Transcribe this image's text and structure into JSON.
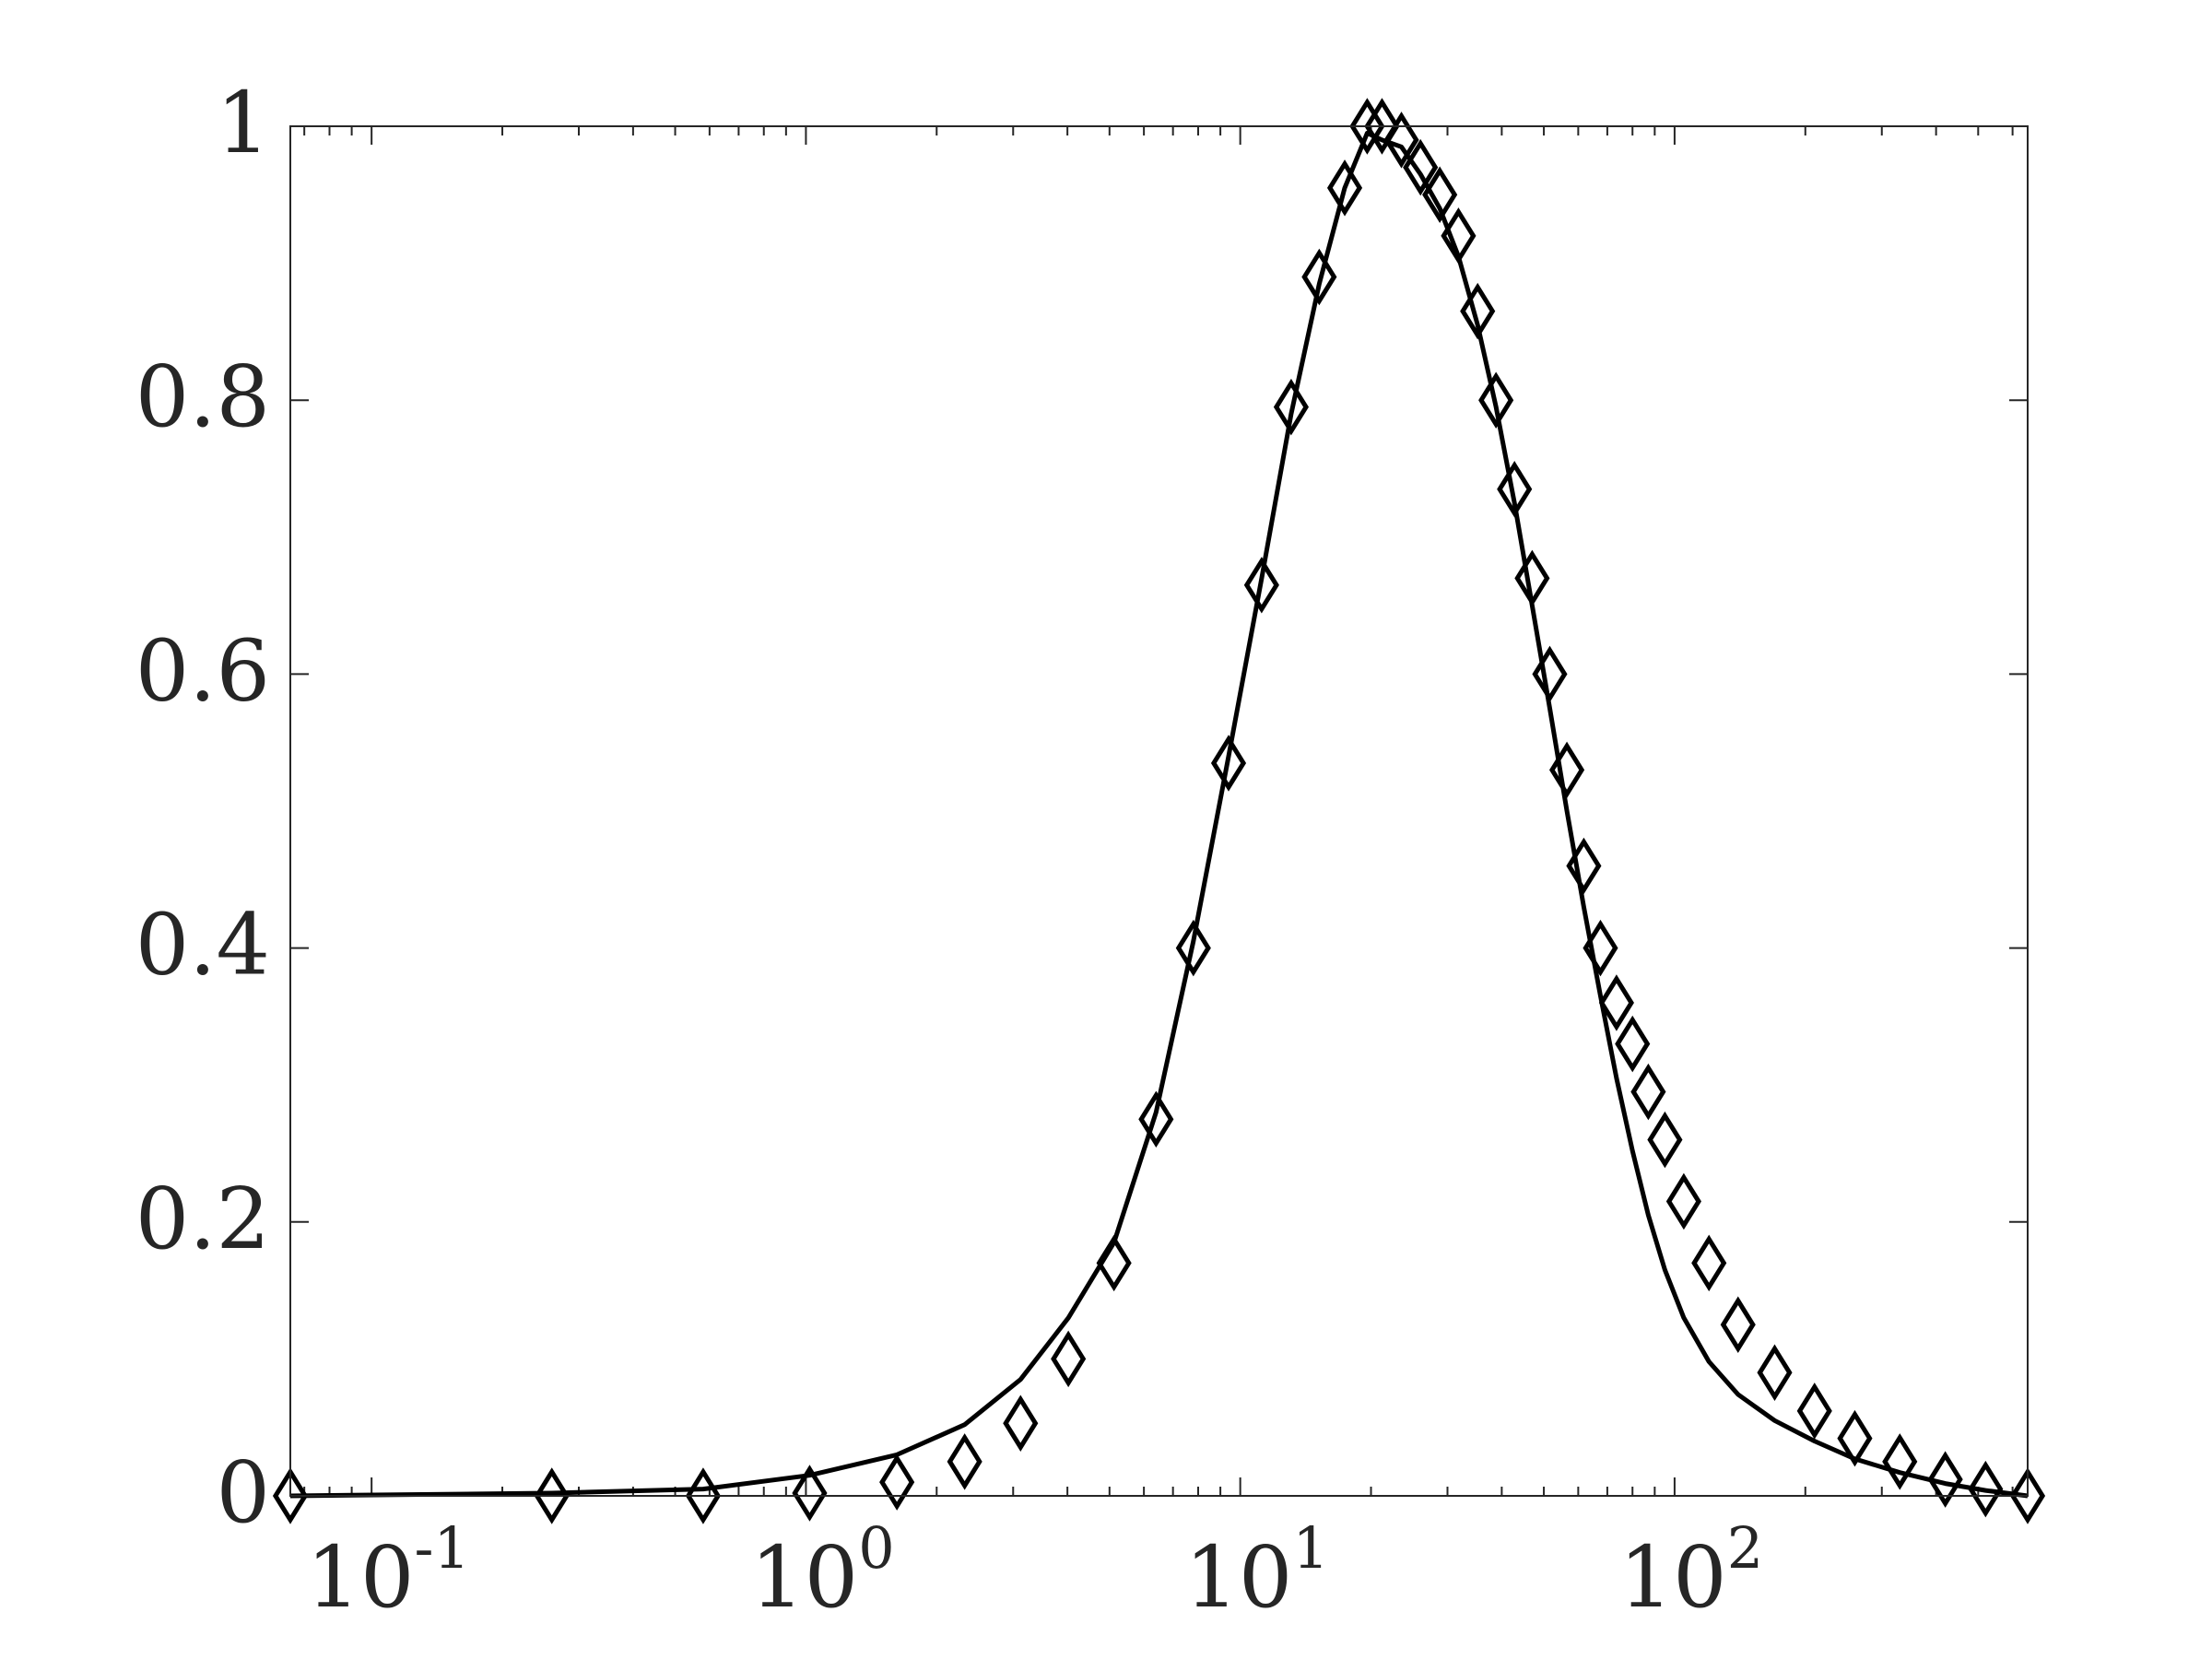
{
  "chart_data": {
    "type": "line",
    "title": "",
    "xlabel": "",
    "ylabel": "",
    "x_scale": "log",
    "xlim": [
      0.065,
      650
    ],
    "ylim": [
      0,
      1
    ],
    "grid": false,
    "x_ticks": [
      {
        "value": 0.1,
        "base": "10",
        "exp": "-1"
      },
      {
        "value": 1,
        "base": "10",
        "exp": "0"
      },
      {
        "value": 10,
        "base": "10",
        "exp": "1"
      },
      {
        "value": 100,
        "base": "10",
        "exp": "2"
      }
    ],
    "y_ticks": [
      {
        "value": 0,
        "label": "0"
      },
      {
        "value": 0.2,
        "label": "0.2"
      },
      {
        "value": 0.4,
        "label": "0.4"
      },
      {
        "value": 0.6,
        "label": "0.6"
      },
      {
        "value": 0.8,
        "label": "0.8"
      },
      {
        "value": 1,
        "label": "1"
      }
    ],
    "series": [
      {
        "style": "line",
        "color": "#000000",
        "x": [
          0.065,
          0.26,
          0.58,
          1.02,
          1.62,
          2.32,
          3.12,
          4.02,
          5.12,
          6.4,
          7.8,
          9.4,
          11.2,
          13.1,
          15.2,
          17.4,
          19.6,
          21.2,
          23.5,
          26.0,
          28.8,
          31.8,
          35.2,
          38.8,
          42.8,
          47.0,
          51.6,
          56.5,
          61.8,
          67.5,
          73.5,
          80.0,
          87.0,
          95.0,
          105,
          120,
          140,
          170,
          210,
          260,
          330,
          420,
          520,
          650
        ],
        "y": [
          0.0,
          0.002,
          0.005,
          0.015,
          0.03,
          0.052,
          0.085,
          0.13,
          0.185,
          0.28,
          0.405,
          0.54,
          0.67,
          0.79,
          0.885,
          0.955,
          0.995,
          0.99,
          0.985,
          0.965,
          0.94,
          0.905,
          0.855,
          0.795,
          0.725,
          0.65,
          0.575,
          0.5,
          0.43,
          0.365,
          0.305,
          0.252,
          0.205,
          0.165,
          0.13,
          0.098,
          0.074,
          0.055,
          0.04,
          0.027,
          0.017,
          0.009,
          0.004,
          0.0
        ]
      },
      {
        "style": "markers",
        "marker": "diamond",
        "color": "#000000",
        "x": [
          0.065,
          0.26,
          0.58,
          1.02,
          1.62,
          2.32,
          3.12,
          4.02,
          5.12,
          6.4,
          7.8,
          9.4,
          11.2,
          13.1,
          15.2,
          17.4,
          19.6,
          21.2,
          23.5,
          26.0,
          28.8,
          31.8,
          35.2,
          38.8,
          42.8,
          47.0,
          51.6,
          56.5,
          61.8,
          67.5,
          73.5,
          80.0,
          87.0,
          95.0,
          105,
          120,
          140,
          170,
          210,
          260,
          330,
          420,
          520,
          650
        ],
        "y": [
          0.0,
          0.0,
          0.0,
          0.002,
          0.01,
          0.025,
          0.053,
          0.1,
          0.17,
          0.275,
          0.4,
          0.535,
          0.665,
          0.795,
          0.89,
          0.955,
          1.0,
          1.0,
          0.99,
          0.97,
          0.95,
          0.92,
          0.865,
          0.8,
          0.735,
          0.67,
          0.6,
          0.53,
          0.46,
          0.4,
          0.36,
          0.33,
          0.295,
          0.26,
          0.215,
          0.17,
          0.125,
          0.09,
          0.062,
          0.042,
          0.025,
          0.012,
          0.005,
          0.0
        ]
      }
    ]
  }
}
